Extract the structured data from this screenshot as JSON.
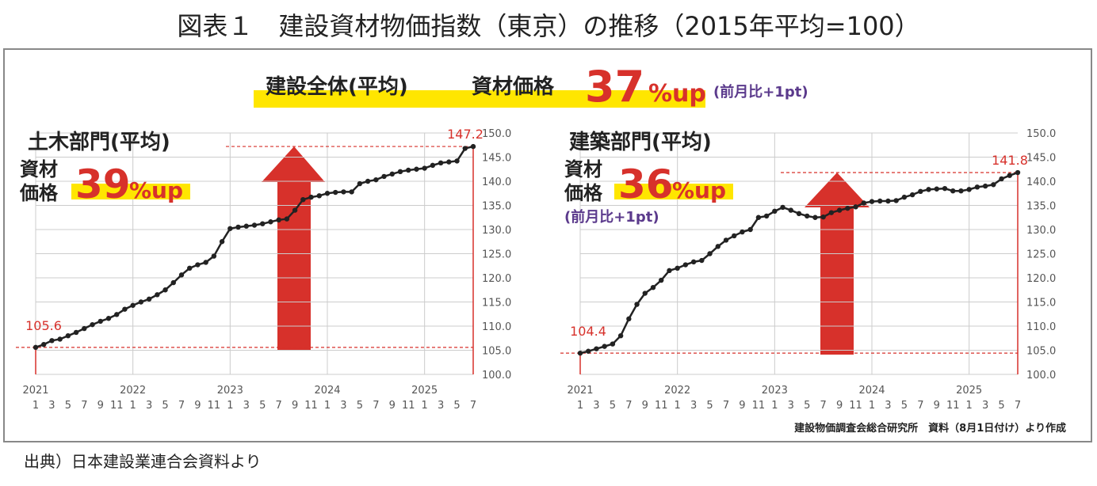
{
  "title": "図表１　建設資材物価指数（東京）の推移（2015年平均=100）",
  "banner": {
    "label": "建設全体(平均)",
    "item": "資材価格",
    "change": "37",
    "change_unit": "%up",
    "note": "(前月比+1pt)"
  },
  "source": "建設物価調査会総合研究所　資料（8月1日付け）より作成",
  "footer": "出典）日本建設業連合会資料より",
  "chart_data": [
    {
      "type": "line",
      "title": "土木部門(平均)",
      "highlight_lines": [
        "資材",
        "価格"
      ],
      "change": "39",
      "change_unit": "%up",
      "years": [
        "2021",
        "2022",
        "2023",
        "2024",
        "2025"
      ],
      "categories": [
        "1",
        null,
        "3",
        null,
        "5",
        null,
        "7",
        null,
        "9",
        null,
        "11",
        null,
        "1",
        null,
        "3",
        null,
        "5",
        null,
        "7",
        null,
        "9",
        null,
        "11",
        null,
        "1",
        null,
        "3",
        null,
        "5",
        null,
        "7",
        null,
        "9",
        null,
        "11",
        null,
        "1",
        null,
        "3",
        null,
        "5",
        null,
        "7",
        null,
        "9",
        null,
        "11",
        null,
        "1",
        null,
        "3",
        null,
        "5",
        null,
        "7"
      ],
      "series": [
        {
          "color": "#222222",
          "values": [
            105.6,
            106.2,
            107,
            107.3,
            108,
            108.7,
            109.5,
            110.3,
            111,
            111.6,
            112.4,
            113.5,
            114.3,
            115,
            115.6,
            116.5,
            117.5,
            119,
            120.6,
            122,
            122.7,
            123.2,
            124.5,
            127.5,
            130.2,
            130.5,
            130.7,
            130.9,
            131.2,
            131.6,
            132,
            132.2,
            134,
            136.2,
            136.7,
            137,
            137.5,
            137.7,
            137.8,
            137.8,
            139.5,
            140,
            140.3,
            141,
            141.5,
            142,
            142.3,
            142.5,
            142.7,
            143.3,
            143.8,
            144,
            144.2,
            146.8,
            147.2
          ]
        }
      ],
      "ylim": [
        100,
        150
      ],
      "yticks": [
        {
          "value": 100,
          "label": "100.0"
        },
        {
          "value": 105,
          "label": "105.0"
        },
        {
          "value": 110,
          "label": "110.0"
        },
        {
          "value": 115,
          "label": "115.0"
        },
        {
          "value": 120,
          "label": "120.0"
        },
        {
          "value": 125,
          "label": "125.0"
        },
        {
          "value": 130,
          "label": "130.0"
        },
        {
          "value": 135,
          "label": "135.0"
        },
        {
          "value": 140,
          "label": "140.0"
        },
        {
          "value": 145,
          "label": "145.0"
        },
        {
          "value": 150,
          "label": "150.0"
        }
      ],
      "grid": true
    },
    {
      "type": "line",
      "title": "建築部門(平均)",
      "highlight_lines": [
        "資材",
        "価格"
      ],
      "change": "36",
      "change_unit": "%up",
      "note": "(前月比+1pt)",
      "years": [
        "2021",
        "2022",
        "2023",
        "2024",
        "2025"
      ],
      "categories": [
        "1",
        null,
        "3",
        null,
        "5",
        null,
        "7",
        null,
        "9",
        null,
        "11",
        null,
        "1",
        null,
        "3",
        null,
        "5",
        null,
        "7",
        null,
        "9",
        null,
        "11",
        null,
        "1",
        null,
        "3",
        null,
        "5",
        null,
        "7",
        null,
        "9",
        null,
        "11",
        null,
        "1",
        null,
        "3",
        null,
        "5",
        null,
        "7",
        null,
        "9",
        null,
        "11",
        null,
        "1",
        null,
        "3",
        null,
        "5",
        null,
        "7"
      ],
      "series": [
        {
          "color": "#222222",
          "values": [
            104.4,
            104.8,
            105.3,
            105.8,
            106.3,
            108,
            111.5,
            114.5,
            116.8,
            118,
            119.5,
            121.5,
            122,
            122.7,
            123.3,
            123.6,
            125,
            126.5,
            127.8,
            128.7,
            129.5,
            130,
            132.5,
            132.8,
            133.8,
            134.6,
            134,
            133.3,
            132.8,
            132.5,
            132.6,
            133.5,
            134,
            134.4,
            134.7,
            135.5,
            135.8,
            135.9,
            135.9,
            136,
            136.7,
            137.2,
            137.9,
            138.3,
            138.4,
            138.5,
            138,
            138,
            138.3,
            138.8,
            139,
            139.3,
            140.5,
            141.2,
            141.8
          ]
        }
      ],
      "ylim": [
        100,
        150
      ],
      "yticks": [
        {
          "value": 100,
          "label": "100.0"
        },
        {
          "value": 105,
          "label": "105.0"
        },
        {
          "value": 110,
          "label": "110.0"
        },
        {
          "value": 115,
          "label": "115.0"
        },
        {
          "value": 120,
          "label": "120.0"
        },
        {
          "value": 125,
          "label": "125.0"
        },
        {
          "value": 130,
          "label": "130.0"
        },
        {
          "value": 135,
          "label": "135.0"
        },
        {
          "value": 140,
          "label": "140.0"
        },
        {
          "value": 145,
          "label": "145.0"
        },
        {
          "value": 150,
          "label": "150.0"
        }
      ],
      "grid": true
    }
  ]
}
